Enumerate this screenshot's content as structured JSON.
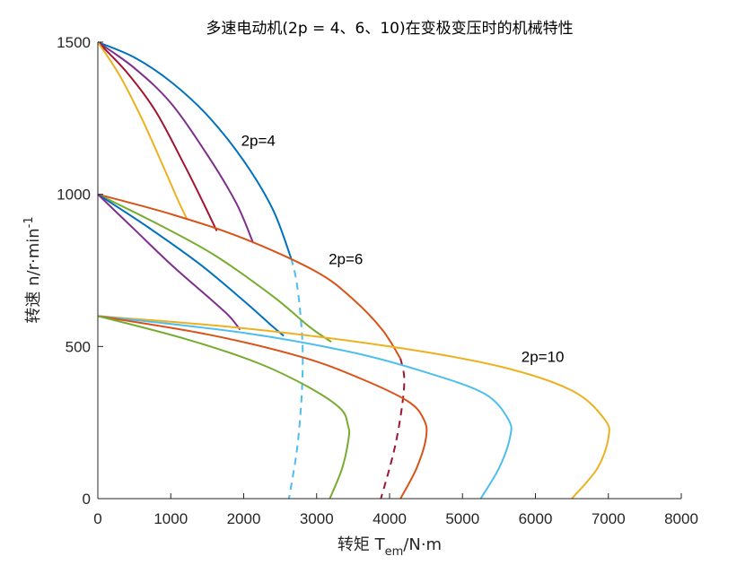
{
  "chart_data": {
    "type": "line",
    "title": "多速电动机(2p = 4、6、10)在变极变压时的机械特性",
    "xlabel": {
      "main": "转矩 T",
      "sub": "em",
      "tail": "/N·m"
    },
    "ylabel": {
      "main": "转速 n/r·min",
      "sup": "-1"
    },
    "xlim": [
      0,
      8000
    ],
    "ylim": [
      0,
      1500
    ],
    "xticks": [
      0,
      1000,
      2000,
      3000,
      4000,
      5000,
      6000,
      7000,
      8000
    ],
    "yticks": [
      0,
      500,
      1000,
      1500
    ],
    "grid": false,
    "legend": "none",
    "annotations": [
      {
        "text": "2p=4",
        "x": 2200,
        "y": 1160
      },
      {
        "text": "2p=6",
        "x": 3400,
        "y": 770
      },
      {
        "text": "2p=10",
        "x": 6100,
        "y": 450
      }
    ],
    "series": [
      {
        "color": "#0072BD",
        "dash": false,
        "x": [
          0,
          500,
          1000,
          1500,
          2000,
          2400,
          2650
        ],
        "y": [
          1500,
          1450,
          1370,
          1260,
          1110,
          950,
          790
        ]
      },
      {
        "color": "#7E2F8E",
        "dash": false,
        "x": [
          0,
          500,
          1000,
          1500,
          1900,
          2130
        ],
        "y": [
          1500,
          1415,
          1300,
          1130,
          970,
          840
        ]
      },
      {
        "color": "#A2142F",
        "dash": false,
        "x": [
          0,
          400,
          800,
          1200,
          1450,
          1630
        ],
        "y": [
          1500,
          1400,
          1270,
          1090,
          970,
          880
        ]
      },
      {
        "color": "#EDB120",
        "dash": false,
        "x": [
          0,
          300,
          600,
          900,
          1100,
          1220
        ],
        "y": [
          1500,
          1390,
          1250,
          1090,
          980,
          920
        ]
      },
      {
        "color": "#4DBEEE",
        "dash": true,
        "x": [
          2650,
          2720,
          2780,
          2810,
          2790,
          2730,
          2620
        ],
        "y": [
          790,
          720,
          600,
          470,
          320,
          160,
          0
        ]
      },
      {
        "color": "#D95319",
        "dash": false,
        "x": [
          0,
          1000,
          2000,
          3000,
          3500,
          3900,
          4150
        ],
        "y": [
          1000,
          935,
          855,
          745,
          655,
          555,
          460
        ]
      },
      {
        "color": "#77AC30",
        "dash": false,
        "x": [
          0,
          800,
          1600,
          2400,
          2900,
          3200
        ],
        "y": [
          1000,
          905,
          800,
          665,
          565,
          515
        ]
      },
      {
        "color": "#0072BD",
        "dash": false,
        "x": [
          0,
          700,
          1400,
          2000,
          2400,
          2550
        ],
        "y": [
          1000,
          890,
          770,
          650,
          565,
          535
        ]
      },
      {
        "color": "#7E2F8E",
        "dash": false,
        "x": [
          0,
          500,
          1000,
          1500,
          1800,
          1950
        ],
        "y": [
          1000,
          885,
          770,
          665,
          600,
          555
        ]
      },
      {
        "color": "#A2142F",
        "dash": true,
        "x": [
          4150,
          4200,
          4180,
          4100,
          4000,
          3880
        ],
        "y": [
          460,
          400,
          320,
          200,
          100,
          0
        ]
      },
      {
        "color": "#EDB120",
        "dash": false,
        "x": [
          0,
          2000,
          4000,
          5500,
          6500,
          6950,
          7000,
          6850,
          6500
        ],
        "y": [
          600,
          560,
          500,
          435,
          355,
          260,
          200,
          100,
          0
        ]
      },
      {
        "color": "#4DBEEE",
        "dash": false,
        "x": [
          0,
          2000,
          3500,
          4500,
          5300,
          5630,
          5650,
          5500,
          5250
        ],
        "y": [
          600,
          545,
          480,
          415,
          345,
          260,
          200,
          100,
          0
        ]
      },
      {
        "color": "#D95319",
        "dash": false,
        "x": [
          0,
          1500,
          2800,
          3600,
          4250,
          4470,
          4500,
          4370,
          4150
        ],
        "y": [
          600,
          540,
          465,
          395,
          320,
          260,
          200,
          100,
          0
        ]
      },
      {
        "color": "#77AC30",
        "dash": false,
        "x": [
          0,
          1200,
          2200,
          2900,
          3330,
          3430,
          3440,
          3350,
          3180
        ],
        "y": [
          600,
          525,
          445,
          365,
          295,
          240,
          200,
          100,
          0
        ]
      }
    ]
  }
}
